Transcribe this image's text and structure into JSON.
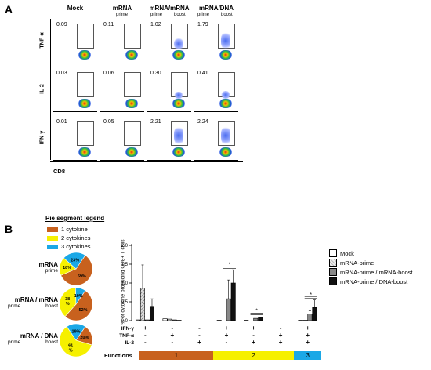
{
  "panelA": {
    "letter": "A",
    "columns": [
      {
        "title": "Mock",
        "sub": []
      },
      {
        "title": "mRNA",
        "sub": [
          "prime"
        ]
      },
      {
        "title": "mRNA/mRNA",
        "sub": [
          "prime",
          "boost"
        ]
      },
      {
        "title": "mRNA/DNA",
        "sub": [
          "prime",
          "boost"
        ]
      }
    ],
    "rows": [
      {
        "label": "TNF-α",
        "values": [
          "0.09",
          "0.11",
          "1.02",
          "1.79"
        ]
      },
      {
        "label": "IL-2",
        "values": [
          "0.03",
          "0.06",
          "0.30",
          "0.41"
        ]
      },
      {
        "label": "IFN-γ",
        "values": [
          "0.01",
          "0.05",
          "2.21",
          "2.24"
        ]
      }
    ],
    "xlabel": "CD8"
  },
  "panelB": {
    "letter": "B",
    "legend": {
      "title": "Pie segment legend",
      "items": [
        {
          "label": "1 cytokine",
          "color": "#c8611e"
        },
        {
          "label": "2 cytokines",
          "color": "#f6f000"
        },
        {
          "label": "3 cytokines",
          "color": "#1ba8e6"
        }
      ]
    },
    "pies": [
      {
        "title": "mRNA",
        "sub": [
          "prime"
        ],
        "slices": [
          59,
          18,
          23
        ],
        "labels": [
          "59%",
          "18%",
          "23%"
        ]
      },
      {
        "title": "mRNA / mRNA",
        "sub": [
          "prime",
          "boost"
        ],
        "slices": [
          52,
          38,
          10
        ],
        "labels": [
          "52%",
          "38\n%",
          "10%"
        ]
      },
      {
        "title": "mRNA / DNA",
        "sub": [
          "prime",
          "boost"
        ],
        "slices": [
          20,
          61,
          19
        ],
        "labels": [
          "20%",
          "61\n%",
          "19%"
        ]
      }
    ],
    "bar_legend": [
      {
        "label": "Mock",
        "fill": "#ffffff"
      },
      {
        "label": "mRNA-prime",
        "fill": "#cfcfcf"
      },
      {
        "label": "mRNA-prime  / mRNA-boost",
        "fill": "#888888"
      },
      {
        "label": "mRNA-prime  / DNA-boost",
        "fill": "#111111"
      }
    ],
    "table": {
      "rows": [
        "IFN-γ",
        "TNF-α",
        "IL-2"
      ],
      "functions_label": "Functions",
      "signs": [
        [
          "+",
          "-",
          "-",
          "+",
          "+",
          "-",
          "+"
        ],
        [
          "-",
          "+",
          "-",
          "+",
          "-",
          "+",
          "+"
        ],
        [
          "-",
          "-",
          "+",
          "-",
          "+",
          "+",
          "+"
        ]
      ],
      "function_groups": [
        {
          "label": "1",
          "color": "#c8611e"
        },
        {
          "label": "2",
          "color": "#f6f000"
        },
        {
          "label": "3",
          "color": "#1ba8e6"
        }
      ]
    },
    "star": "*"
  },
  "chart_data": {
    "type": "bar",
    "ylabel": "% of cytokine producing CD8+ T cells",
    "ylim": [
      0,
      2
    ],
    "yticks": [
      "0.0",
      "0.5",
      "1.0",
      "1.5",
      "2.0"
    ],
    "categories": [
      "IFN-γ+",
      "TNF-α+",
      "IL-2+",
      "IFN-γ+TNF-α+",
      "IFN-γ+IL-2+",
      "TNF-α+IL-2+",
      "IFN-γ+TNF-α+IL-2+"
    ],
    "series": [
      {
        "name": "Mock",
        "values": [
          0.02,
          0.05,
          0.0,
          0.01,
          0.01,
          0.0,
          0.01
        ],
        "err": [
          0.01,
          0.02,
          0.0,
          0.01,
          0.01,
          0.0,
          0.01
        ]
      },
      {
        "name": "mRNA-prime",
        "values": [
          0.86,
          0.04,
          0.0,
          0.0,
          0.0,
          0.0,
          0.01
        ],
        "err": [
          0.62,
          0.03,
          0.0,
          0.0,
          0.0,
          0.0,
          0.01
        ]
      },
      {
        "name": "mRNA-prime  / mRNA-boost",
        "values": [
          0.02,
          0.02,
          0.0,
          0.58,
          0.06,
          0.0,
          0.18
        ],
        "err": [
          0.02,
          0.02,
          0.0,
          0.5,
          0.03,
          0.0,
          0.08
        ]
      },
      {
        "name": "mRNA-prime  / DNA-boost",
        "values": [
          0.38,
          0.01,
          0.0,
          1.0,
          0.09,
          0.0,
          0.35
        ],
        "err": [
          0.2,
          0.01,
          0.0,
          0.35,
          0.03,
          0.0,
          0.2
        ]
      }
    ],
    "significance": [
      {
        "category_index": 3,
        "label": "*"
      },
      {
        "category_index": 4,
        "label": "*"
      },
      {
        "category_index": 6,
        "label": "*"
      }
    ]
  }
}
